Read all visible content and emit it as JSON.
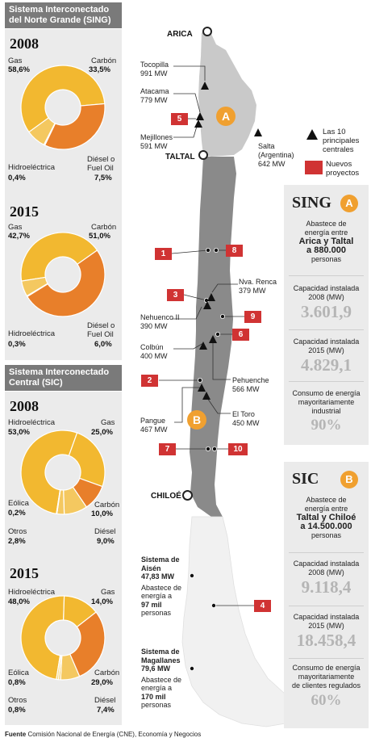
{
  "sing_section": {
    "title_line1": "Sistema Interconectado",
    "title_line2": "del Norte Grande (SING)",
    "charts": [
      {
        "year": "2008",
        "labels": {
          "gas": "Gas",
          "carbon": "Carbón",
          "hidro": "Hidroeléctrica",
          "diesel1": "Diésel o",
          "diesel2": "Fuel Oil"
        },
        "pcts": {
          "gas": "58,6%",
          "carbon": "33,5%",
          "hidro": "0,4%",
          "diesel": "7,5%"
        }
      },
      {
        "year": "2015",
        "labels": {
          "gas": "Gas",
          "carbon": "Carbón",
          "hidro": "Hidroeléctrica",
          "diesel1": "Diésel o",
          "diesel2": "Fuel Oil"
        },
        "pcts": {
          "gas": "42,7%",
          "carbon": "51,0%",
          "hidro": "0,3%",
          "diesel": "6,0%"
        }
      }
    ]
  },
  "sic_section": {
    "title_line1": "Sistema Interconectado",
    "title_line2": "Central (SIC)",
    "charts": [
      {
        "year": "2008",
        "labels": {
          "hidro": "Hidroeléctrica",
          "gas": "Gas",
          "eolica": "Eólica",
          "carbon": "Carbón",
          "otros": "Otros",
          "diesel": "Diésel"
        },
        "pcts": {
          "hidro": "53,0%",
          "gas": "25,0%",
          "eolica": "0,2%",
          "carbon": "10,0%",
          "otros": "2,8%",
          "diesel": "9,0%"
        }
      },
      {
        "year": "2015",
        "labels": {
          "hidro": "Hidroeléctrica",
          "gas": "Gas",
          "eolica": "Eólica",
          "carbon": "Carbón",
          "otros": "Otros",
          "diesel": "Diésel"
        },
        "pcts": {
          "hidro": "48,0%",
          "gas": "14,0%",
          "eolica": "0,8%",
          "carbon": "29,0%",
          "otros": "0,8%",
          "diesel": "7,4%"
        }
      }
    ]
  },
  "chart_data": [
    {
      "type": "pie",
      "title": "2008",
      "categories": [
        "Gas",
        "Carbón",
        "Hidroeléctrica",
        "Diésel o Fuel Oil"
      ],
      "values": [
        58.6,
        33.5,
        0.4,
        7.5
      ]
    },
    {
      "type": "pie",
      "title": "2015",
      "categories": [
        "Gas",
        "Carbón",
        "Hidroeléctrica",
        "Diésel o Fuel Oil"
      ],
      "values": [
        42.7,
        51.0,
        0.3,
        6.0
      ]
    },
    {
      "type": "pie",
      "title": "2008",
      "categories": [
        "Hidroeléctrica",
        "Gas",
        "Carbón",
        "Diésel",
        "Otros",
        "Eólica"
      ],
      "values": [
        53.0,
        25.0,
        10.0,
        9.0,
        2.8,
        0.2
      ]
    },
    {
      "type": "pie",
      "title": "2015",
      "categories": [
        "Hidroeléctrica",
        "Gas",
        "Carbón",
        "Diésel",
        "Otros",
        "Eólica"
      ],
      "values": [
        48.0,
        14.0,
        29.0,
        7.4,
        0.8,
        0.8
      ]
    }
  ],
  "colors": {
    "gas": "#f2b830",
    "carbon": "#e87f2a",
    "hidro": "#f6d87a",
    "other": "#f4c860",
    "sing_region": "#c9c9c9",
    "sic_region": "#8a8a8a",
    "south": "#f1f1f1",
    "badge": "#f0a030",
    "new_project": "#d03333"
  },
  "map": {
    "arica": "ARICA",
    "taltal": "TALTAL",
    "chiloe": "CHILOÉ",
    "plants": [
      {
        "name": "Tocopilla",
        "mw": "991 MW"
      },
      {
        "name": "Atacama",
        "mw": "779 MW"
      },
      {
        "name": "Mejillones",
        "mw": "591 MW"
      },
      {
        "name": "Salta",
        "name2": "(Argentina)",
        "mw": "642 MW"
      },
      {
        "name": "Nva. Renca",
        "mw": "379 MW"
      },
      {
        "name": "Nehuenco II",
        "mw": "390 MW"
      },
      {
        "name": "Colbún",
        "mw": "400 MW"
      },
      {
        "name": "Pehuenche",
        "mw": "566 MW"
      },
      {
        "name": "El Toro",
        "mw": "450 MW"
      },
      {
        "name": "Pangue",
        "mw": "467 MW"
      }
    ],
    "project_numbers": [
      "5",
      "1",
      "8",
      "3",
      "9",
      "6",
      "2",
      "7",
      "10",
      "4"
    ],
    "region_badges": {
      "a": "A",
      "b": "B"
    },
    "aisen": {
      "title": "Sistema de Aisén",
      "mw": "47,83 MW",
      "t1": "Abastece de",
      "t2": "energía a",
      "num": "97 mil",
      "t3": "personas"
    },
    "magallanes": {
      "title": "Sistema de Magallanes",
      "mw": "79,6 MW",
      "t1": "Abastece de",
      "t2": "energía a",
      "num": "170 mil",
      "t3": "personas"
    }
  },
  "legend": {
    "plants": "Las 10 principales centrales",
    "projects": "Nuevos proyectos"
  },
  "sing_box": {
    "title": "SING",
    "badge": "A",
    "supply1": "Abastece de",
    "supply2": "energía entre",
    "route": "Arica y Taltal",
    "people": "a 880.000",
    "people_word": "personas",
    "cap2008_label1": "Capacidad instalada",
    "cap2008_label2": "2008 (MW)",
    "cap2008": "3.601,9",
    "cap2015_label1": "Capacidad instalada",
    "cap2015_label2": "2015 (MW)",
    "cap2015": "4.829,1",
    "consumo1": "Consumo de energía",
    "consumo2": "mayoritariamente",
    "consumo3": "industrial",
    "consumo_pct": "90%"
  },
  "sic_box": {
    "title": "SIC",
    "badge": "B",
    "supply1": "Abastece de",
    "supply2": "energía entre",
    "route": "Taltal y Chiloé",
    "people": "a 14.500.000",
    "people_word": "personas",
    "cap2008_label1": "Capacidad instalada",
    "cap2008_label2": "2008 (MW)",
    "cap2008": "9.118,4",
    "cap2015_label1": "Capacidad instalada",
    "cap2015_label2": "2015 (MW)",
    "cap2015": "18.458,4",
    "consumo1": "Consumo de energía",
    "consumo2": "mayoritariamente",
    "consumo3": "de clientes regulados",
    "consumo_pct": "60%"
  },
  "source": {
    "label": "Fuente",
    "text": "Comisión Nacional de Energía (CNE), Economía y Negocios"
  }
}
